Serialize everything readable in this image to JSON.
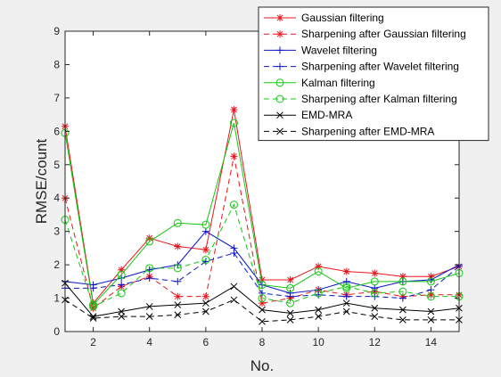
{
  "chart_data": {
    "type": "line",
    "xlabel": "No.",
    "ylabel": "RMSE/count",
    "xlim": [
      1,
      15
    ],
    "ylim": [
      0,
      9
    ],
    "x_ticks": [
      2,
      4,
      6,
      8,
      10,
      12,
      14
    ],
    "y_ticks": [
      0,
      1,
      2,
      3,
      4,
      5,
      6,
      7,
      8,
      9
    ],
    "grid": false,
    "legend_position": "top-right",
    "x": [
      1,
      2,
      3,
      4,
      5,
      6,
      7,
      8,
      9,
      10,
      11,
      12,
      13,
      14,
      15
    ],
    "series": [
      {
        "name": "Gaussian filtering",
        "color": "#e8141c",
        "dash": "solid",
        "marker": "asterisk",
        "values": [
          6.15,
          0.85,
          1.85,
          2.8,
          2.55,
          2.45,
          6.65,
          1.55,
          1.55,
          1.95,
          1.8,
          1.75,
          1.65,
          1.65,
          1.95
        ]
      },
      {
        "name": "Sharpening after Gaussian filtering",
        "color": "#e8141c",
        "dash": "dashed",
        "marker": "asterisk",
        "values": [
          4.0,
          0.7,
          1.35,
          1.65,
          1.05,
          1.05,
          5.25,
          0.85,
          1.0,
          1.25,
          1.1,
          1.2,
          1.05,
          1.1,
          1.1
        ]
      },
      {
        "name": "Wavelet filtering",
        "color": "#0a14c8",
        "dash": "solid",
        "marker": "plus",
        "values": [
          1.5,
          1.4,
          1.6,
          1.85,
          2.0,
          3.0,
          2.5,
          1.4,
          1.15,
          1.25,
          1.5,
          1.3,
          1.5,
          1.55,
          2.0
        ]
      },
      {
        "name": "Sharpening after Wavelet filtering",
        "color": "#0a14c8",
        "dash": "dashed",
        "marker": "plus",
        "values": [
          1.3,
          1.3,
          1.4,
          1.6,
          1.5,
          2.1,
          2.35,
          1.15,
          1.05,
          1.1,
          1.05,
          1.05,
          1.0,
          1.25,
          1.95
        ]
      },
      {
        "name": "Kalman filtering",
        "color": "#14c814",
        "dash": "solid",
        "marker": "circle",
        "values": [
          5.95,
          0.8,
          1.7,
          2.7,
          3.25,
          3.2,
          6.25,
          1.4,
          1.3,
          1.8,
          1.3,
          1.5,
          1.5,
          1.5,
          1.75
        ]
      },
      {
        "name": "Sharpening after Kalman filtering",
        "color": "#14c814",
        "dash": "dashed",
        "marker": "circle",
        "values": [
          3.35,
          0.75,
          1.15,
          1.9,
          1.9,
          2.15,
          3.8,
          1.0,
          0.85,
          1.15,
          1.35,
          1.15,
          1.2,
          1.05,
          1.05
        ]
      },
      {
        "name": "EMD-MRA",
        "color": "#000000",
        "dash": "solid",
        "marker": "x",
        "values": [
          1.45,
          0.45,
          0.6,
          0.75,
          0.8,
          0.85,
          1.35,
          0.65,
          0.55,
          0.65,
          0.85,
          0.7,
          0.65,
          0.6,
          0.7
        ]
      },
      {
        "name": "Sharpening after EMD-MRA",
        "color": "#000000",
        "dash": "dashed",
        "marker": "x",
        "values": [
          0.95,
          0.4,
          0.45,
          0.45,
          0.5,
          0.6,
          0.95,
          0.3,
          0.35,
          0.45,
          0.6,
          0.45,
          0.35,
          0.35,
          0.35
        ]
      }
    ]
  }
}
